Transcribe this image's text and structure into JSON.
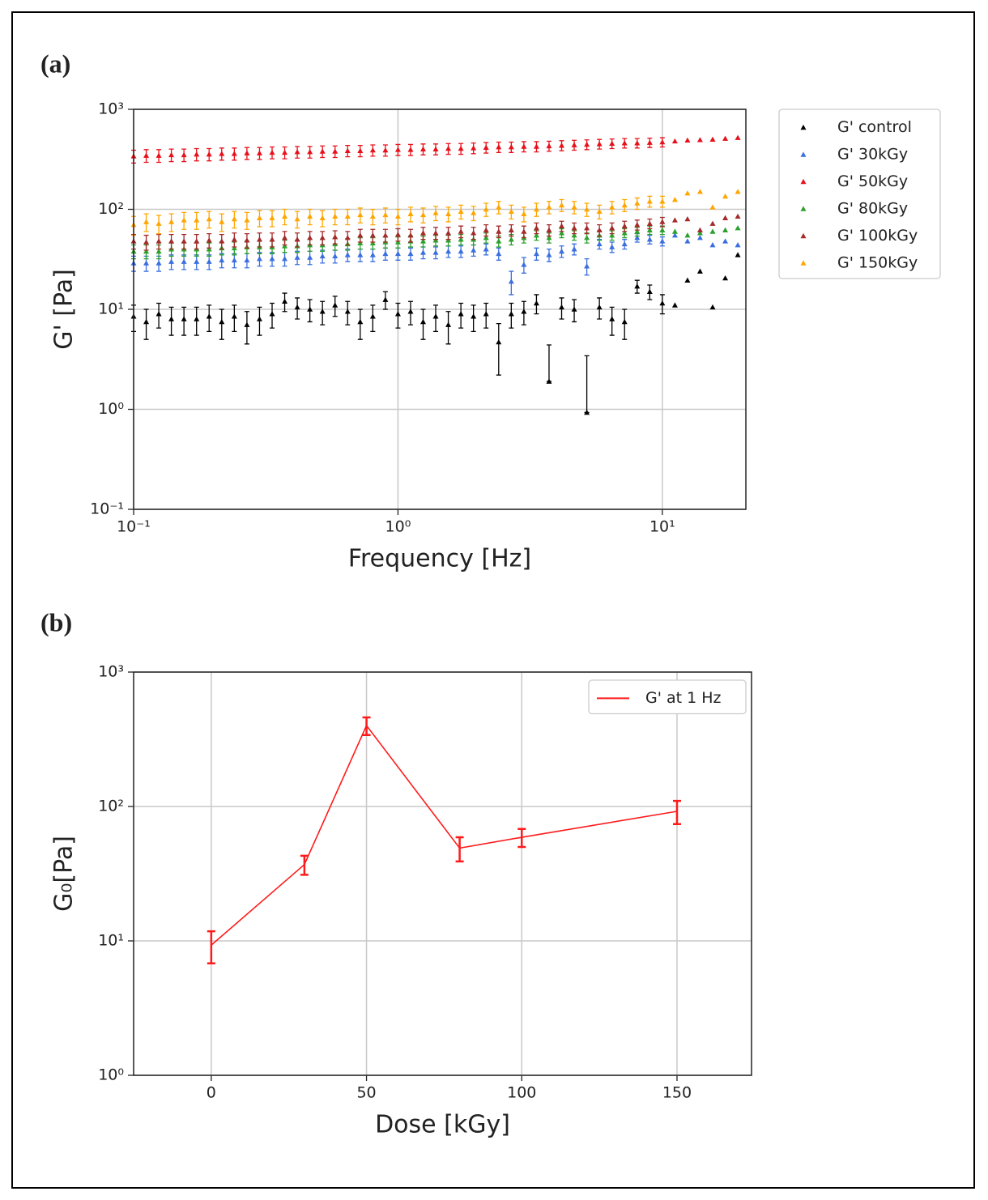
{
  "chart_data": [
    {
      "type": "scatter",
      "panel_label": "(a)",
      "xlabel": "Frequency [Hz]",
      "ylabel": "G' [Pa]",
      "log_x": true,
      "log_y": true,
      "grid": true,
      "legend": "outside right",
      "xlim": [
        0.1,
        20.7
      ],
      "ylim": [
        0.1,
        1000
      ],
      "xticks": [
        {
          "value": 0.1,
          "label": "10⁻¹"
        },
        {
          "value": 1,
          "label": "10⁰"
        },
        {
          "value": 10,
          "label": "10¹"
        }
      ],
      "yticks": [
        {
          "value": 0.1,
          "label": "10⁻¹"
        },
        {
          "value": 1,
          "label": "10⁰"
        },
        {
          "value": 10,
          "label": "10¹"
        },
        {
          "value": 100,
          "label": "10²"
        },
        {
          "value": 1000,
          "label": "10³"
        }
      ],
      "x": [
        0.1,
        0.1116,
        0.1245,
        0.1389,
        0.155,
        0.173,
        0.193,
        0.2154,
        0.2404,
        0.2683,
        0.2994,
        0.3341,
        0.3728,
        0.416,
        0.4642,
        0.518,
        0.578,
        0.645,
        0.7197,
        0.8031,
        0.8962,
        1,
        1.116,
        1.245,
        1.389,
        1.55,
        1.73,
        1.93,
        2.154,
        2.404,
        2.683,
        2.994,
        3.341,
        3.728,
        4.16,
        4.642,
        5.18,
        5.78,
        6.45,
        7.197,
        8.031,
        8.962,
        10,
        11.16,
        12.45,
        13.89,
        15.5,
        17.3,
        19.3
      ],
      "series": [
        {
          "name": "G' control",
          "color": "#000000",
          "values": [
            8.5,
            7.5,
            9,
            8,
            8,
            8,
            8.5,
            7.5,
            8.5,
            7,
            8,
            9,
            12,
            10.5,
            10,
            9.5,
            11,
            9.5,
            7.5,
            8.5,
            12.5,
            9,
            9.5,
            7.5,
            8.5,
            7,
            9,
            8.5,
            9,
            4.7,
            9,
            9.5,
            11.5,
            1.9,
            10.5,
            10,
            0.93,
            10.5,
            8,
            7.5,
            17,
            15,
            11.5,
            11,
            19.5,
            24,
            10.5,
            20.5,
            35
          ],
          "errors": [
            2.5,
            2.5,
            2.5,
            2.5,
            2.5,
            2.5,
            2.5,
            2.5,
            2.5,
            2.5,
            2.5,
            2.5,
            2.5,
            2.5,
            2.5,
            2.5,
            2.5,
            2.5,
            2.5,
            2.5,
            2.5,
            2.5,
            2.5,
            2.5,
            2.5,
            2.5,
            2.5,
            2.5,
            2.5,
            2.5,
            2.5,
            2.5,
            2.5,
            2.5,
            2.5,
            2.5,
            2.5,
            2.5,
            2.5,
            2.5,
            2.5,
            2.5,
            2.5,
            null,
            null,
            null,
            null,
            null,
            null
          ]
        },
        {
          "name": "G' 30kGy",
          "color": "#3b6fe0",
          "values": [
            29,
            29,
            29,
            30,
            30,
            30,
            30,
            31,
            31,
            31,
            32,
            32,
            32,
            33,
            33,
            34,
            34,
            35,
            35,
            35,
            36,
            36,
            36,
            37,
            37,
            38,
            38,
            39,
            40,
            36,
            19,
            28,
            36,
            35,
            38,
            40,
            27,
            45,
            42,
            45,
            52,
            50,
            48,
            55,
            48,
            52,
            44,
            48,
            44
          ],
          "errors": [
            5,
            5,
            5,
            5,
            5,
            5,
            5,
            5,
            5,
            5,
            5,
            5,
            5,
            5,
            5,
            5,
            5,
            5,
            5,
            5,
            5,
            5,
            5,
            5,
            5,
            5,
            5,
            5,
            5,
            5,
            5,
            5,
            5,
            5,
            5,
            5,
            5,
            5,
            5,
            5,
            5,
            5,
            5,
            null,
            null,
            null,
            null,
            null,
            null
          ]
        },
        {
          "name": "G' 50kGy",
          "color": "#e8101a",
          "values": [
            340,
            345,
            345,
            350,
            350,
            355,
            355,
            360,
            360,
            365,
            365,
            370,
            370,
            375,
            375,
            380,
            380,
            385,
            385,
            390,
            390,
            395,
            395,
            400,
            400,
            405,
            405,
            410,
            415,
            420,
            420,
            425,
            425,
            430,
            435,
            440,
            445,
            450,
            455,
            460,
            460,
            465,
            470,
            480,
            490,
            495,
            500,
            510,
            520
          ],
          "errors": [
            50,
            50,
            50,
            50,
            50,
            50,
            50,
            50,
            50,
            50,
            50,
            50,
            50,
            50,
            50,
            50,
            50,
            50,
            50,
            50,
            50,
            50,
            50,
            50,
            50,
            50,
            50,
            50,
            50,
            50,
            50,
            50,
            50,
            50,
            50,
            50,
            50,
            50,
            50,
            50,
            50,
            50,
            50,
            null,
            null,
            null,
            null,
            null,
            null
          ]
        },
        {
          "name": "G' 80kGy",
          "color": "#2ca02c",
          "values": [
            38,
            38,
            38,
            40,
            40,
            40,
            40,
            41,
            41,
            42,
            42,
            42,
            43,
            43,
            44,
            44,
            45,
            45,
            46,
            46,
            47,
            47,
            48,
            48,
            49,
            49,
            50,
            50,
            52,
            48,
            50,
            52,
            55,
            52,
            58,
            55,
            52,
            55,
            55,
            58,
            60,
            62,
            62,
            60,
            55,
            58,
            60,
            62,
            65
          ],
          "errors": [
            6,
            6,
            6,
            6,
            6,
            6,
            6,
            6,
            6,
            6,
            6,
            6,
            6,
            6,
            6,
            6,
            6,
            6,
            6,
            6,
            6,
            6,
            6,
            6,
            6,
            6,
            6,
            6,
            6,
            6,
            6,
            6,
            6,
            6,
            6,
            6,
            6,
            6,
            6,
            6,
            6,
            6,
            6,
            null,
            null,
            null,
            null,
            null,
            null
          ]
        },
        {
          "name": "G' 100kGy",
          "color": "#a52a2a",
          "values": [
            48,
            47,
            48,
            48,
            48,
            48,
            49,
            48,
            50,
            49,
            50,
            50,
            52,
            50,
            52,
            52,
            53,
            52,
            55,
            55,
            55,
            56,
            55,
            58,
            58,
            58,
            60,
            58,
            62,
            60,
            62,
            60,
            65,
            62,
            68,
            65,
            65,
            62,
            65,
            68,
            70,
            72,
            75,
            78,
            80,
            62,
            72,
            82,
            85
          ],
          "errors": [
            8,
            8,
            8,
            8,
            8,
            8,
            8,
            8,
            8,
            8,
            8,
            8,
            8,
            8,
            8,
            8,
            8,
            8,
            8,
            8,
            8,
            8,
            8,
            8,
            8,
            8,
            8,
            8,
            8,
            8,
            8,
            8,
            8,
            8,
            8,
            8,
            8,
            8,
            8,
            8,
            8,
            8,
            8,
            null,
            null,
            null,
            null,
            null,
            null
          ]
        },
        {
          "name": "G' 150kGy",
          "color": "#ffa500",
          "values": [
            70,
            75,
            72,
            75,
            78,
            78,
            80,
            75,
            80,
            78,
            82,
            82,
            85,
            80,
            85,
            82,
            85,
            85,
            88,
            85,
            88,
            85,
            90,
            88,
            92,
            90,
            95,
            92,
            100,
            105,
            95,
            90,
            100,
            105,
            110,
            105,
            100,
            95,
            105,
            110,
            115,
            120,
            120,
            125,
            145,
            150,
            105,
            135,
            150
          ],
          "errors": [
            15,
            15,
            15,
            15,
            15,
            15,
            15,
            15,
            15,
            15,
            15,
            15,
            15,
            15,
            15,
            15,
            15,
            15,
            15,
            15,
            15,
            15,
            15,
            15,
            15,
            15,
            15,
            15,
            15,
            15,
            15,
            15,
            15,
            15,
            15,
            15,
            15,
            15,
            15,
            15,
            15,
            15,
            15,
            null,
            null,
            null,
            null,
            null,
            null
          ]
        }
      ]
    },
    {
      "type": "line",
      "panel_label": "(b)",
      "xlabel": "Dose [kGy]",
      "ylabel": "G₀[Pa]",
      "log_y": true,
      "grid": true,
      "legend": "upper right",
      "xlim": [
        -25,
        174
      ],
      "ylim": [
        1,
        1000
      ],
      "xticks": [
        0,
        50,
        100,
        150
      ],
      "yticks": [
        {
          "value": 1,
          "label": "10⁰"
        },
        {
          "value": 10,
          "label": "10¹"
        },
        {
          "value": 100,
          "label": "10²"
        },
        {
          "value": 1000,
          "label": "10³"
        }
      ],
      "x": [
        0,
        30,
        50,
        80,
        100,
        150
      ],
      "series": [
        {
          "name": "G' at 1 Hz",
          "color": "#ff1a1a",
          "values": [
            9.3,
            37,
            400,
            49,
            59,
            92
          ],
          "errors": [
            2.5,
            6,
            60,
            10,
            9,
            18
          ]
        }
      ]
    }
  ]
}
